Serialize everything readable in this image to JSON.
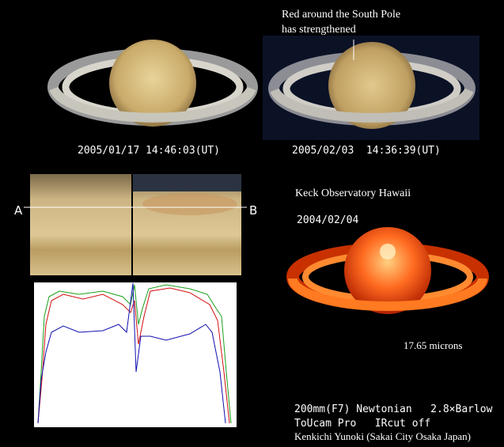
{
  "annotation": {
    "lines": [
      "Red around the South Pole",
      "has strengthened"
    ]
  },
  "images": [
    {
      "timestamp": "2005/01/17 14:46:03(UT)"
    },
    {
      "timestamp": "2005/02/03  14:36:39(UT)"
    }
  ],
  "profile": {
    "start_label": "A",
    "end_label": "B"
  },
  "keck": {
    "title": "Keck Observatory Hawaii",
    "date": "2004/02/04",
    "wavelength": "17.65 microns"
  },
  "credits": [
    "200mm(F7) Newtonian   2.8×Barlow",
    "ToUcam Pro   IRcut off",
    "Kenkichi Yunoki (Sakai City Osaka Japan)"
  ]
}
